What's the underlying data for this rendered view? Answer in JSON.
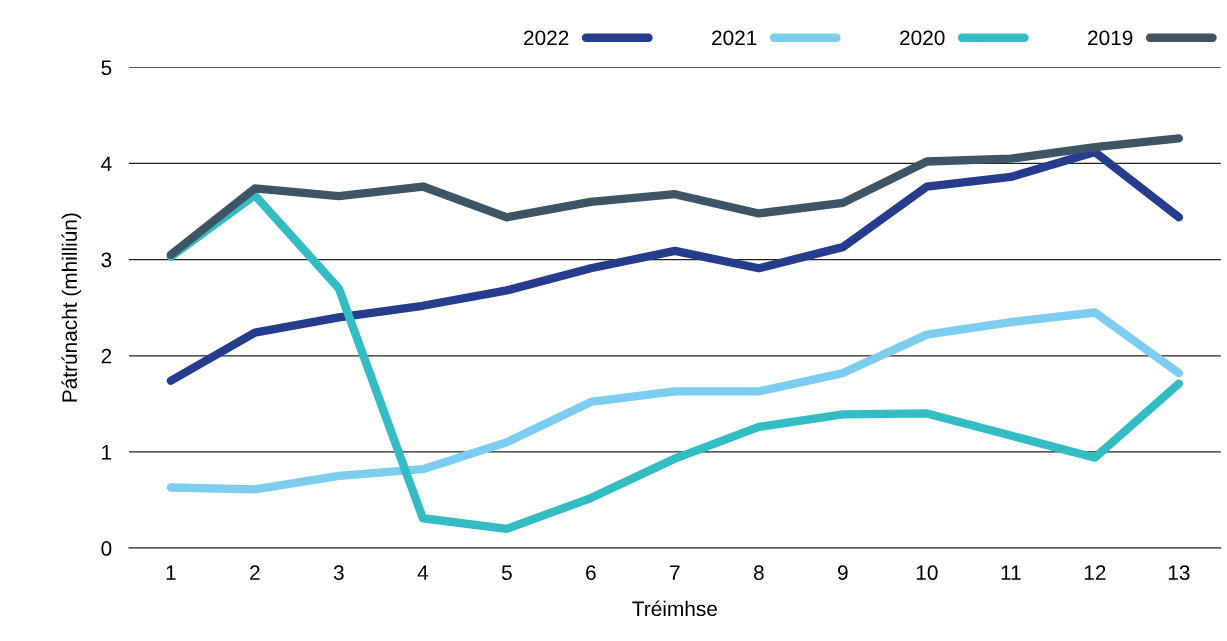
{
  "chart_data": {
    "type": "line",
    "xlabel": "Tréimhse",
    "ylabel": "Pátrúnacht (mhilliún)",
    "categories": [
      "1",
      "2",
      "3",
      "4",
      "5",
      "6",
      "7",
      "8",
      "9",
      "10",
      "11",
      "12",
      "13"
    ],
    "series": [
      {
        "name": "2022",
        "color": "#253d8c",
        "values": [
          1.74,
          2.24,
          2.4,
          2.52,
          2.68,
          2.91,
          3.09,
          2.91,
          3.13,
          3.76,
          3.86,
          4.12,
          3.44
        ]
      },
      {
        "name": "2021",
        "color": "#7dcdf0",
        "values": [
          0.63,
          0.61,
          0.75,
          0.82,
          1.1,
          1.52,
          1.63,
          1.63,
          1.82,
          2.22,
          2.35,
          2.45,
          1.82
        ]
      },
      {
        "name": "2020",
        "color": "#33bcc3",
        "values": [
          3.03,
          3.67,
          2.7,
          0.31,
          0.2,
          0.52,
          0.93,
          1.26,
          1.39,
          1.4,
          1.17,
          0.94,
          1.71
        ]
      },
      {
        "name": "2019",
        "color": "#3d5566",
        "values": [
          3.05,
          3.74,
          3.66,
          3.76,
          3.44,
          3.6,
          3.68,
          3.48,
          3.59,
          4.02,
          4.05,
          4.17,
          4.26
        ]
      }
    ],
    "ylim": [
      0,
      5
    ],
    "yticks": [
      0,
      1,
      2,
      3,
      4,
      5
    ],
    "grid": "y",
    "legend": "top right",
    "marker": "none",
    "line_style": "solid"
  }
}
